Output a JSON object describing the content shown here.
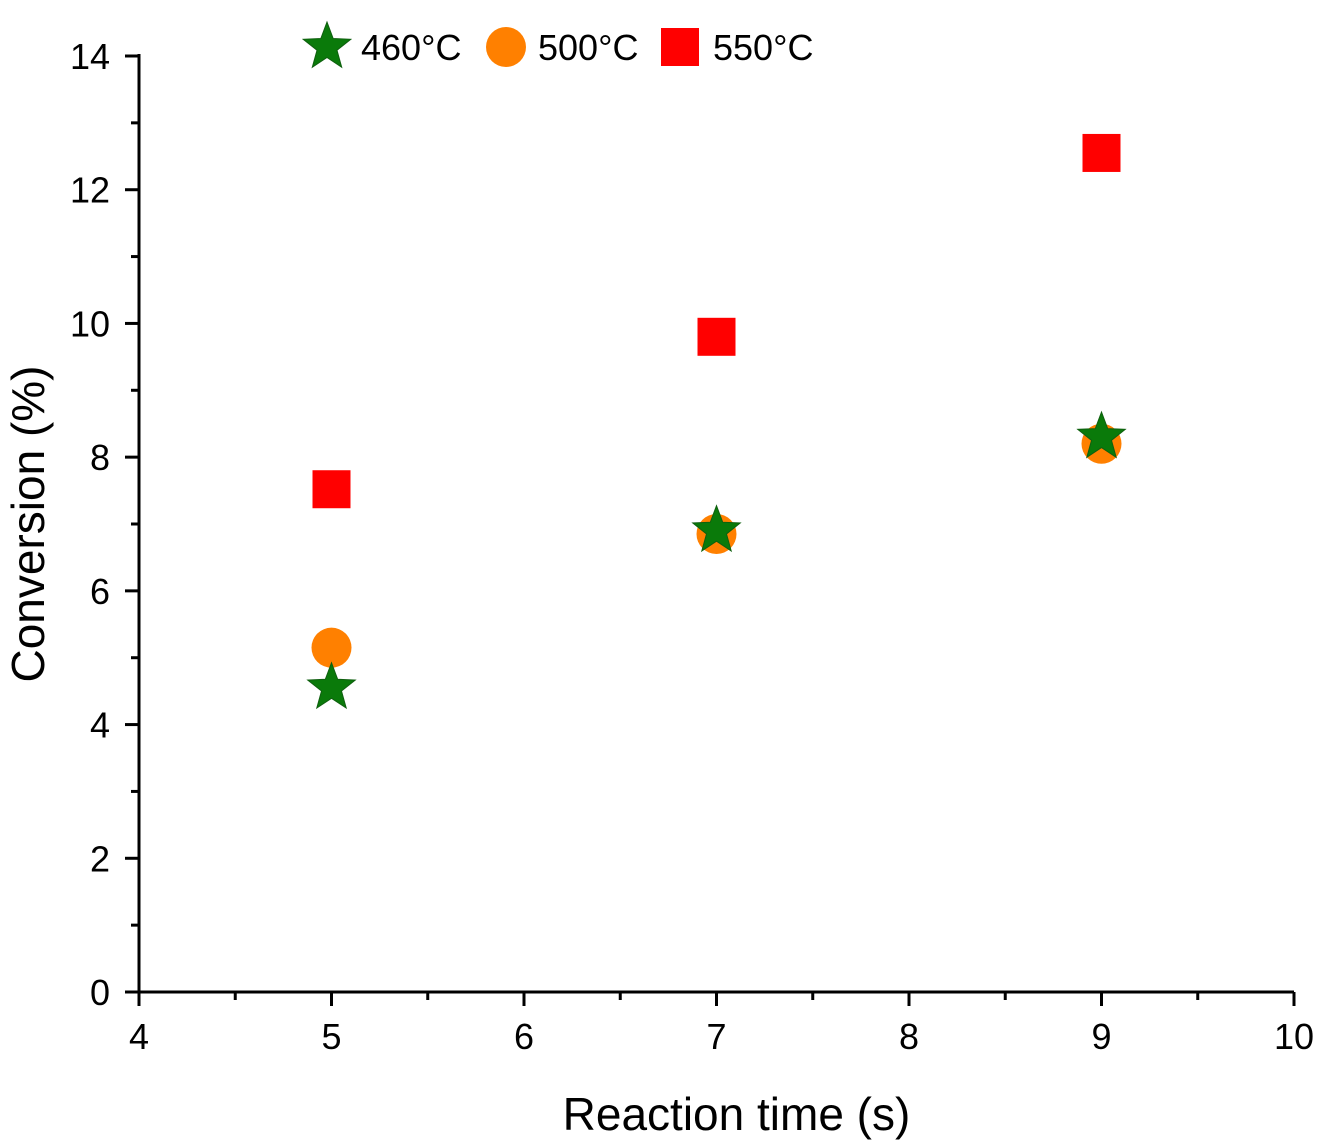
{
  "chart_data": {
    "type": "scatter",
    "title": "",
    "xlabel": "Reaction time (s)",
    "ylabel": "Conversion (%)",
    "xlim": [
      4,
      10
    ],
    "ylim": [
      0,
      14
    ],
    "x_ticks": [
      "4",
      "5",
      "6",
      "7",
      "8",
      "9",
      "10"
    ],
    "y_ticks": [
      "0",
      "2",
      "4",
      "6",
      "8",
      "10",
      "12",
      "14"
    ],
    "grid": false,
    "legend_position": "top",
    "series": [
      {
        "name": "460°C",
        "marker": "star",
        "color": "#0a7a0a",
        "x": [
          5,
          7,
          9
        ],
        "y": [
          4.55,
          6.9,
          8.3
        ]
      },
      {
        "name": "500°C",
        "marker": "circle",
        "color": "#ff8000",
        "x": [
          5,
          7,
          9
        ],
        "y": [
          5.15,
          6.85,
          8.2
        ]
      },
      {
        "name": "550°C",
        "marker": "square",
        "color": "#ff0000",
        "x": [
          5,
          7,
          9
        ],
        "y": [
          7.52,
          9.8,
          12.55
        ]
      }
    ]
  }
}
